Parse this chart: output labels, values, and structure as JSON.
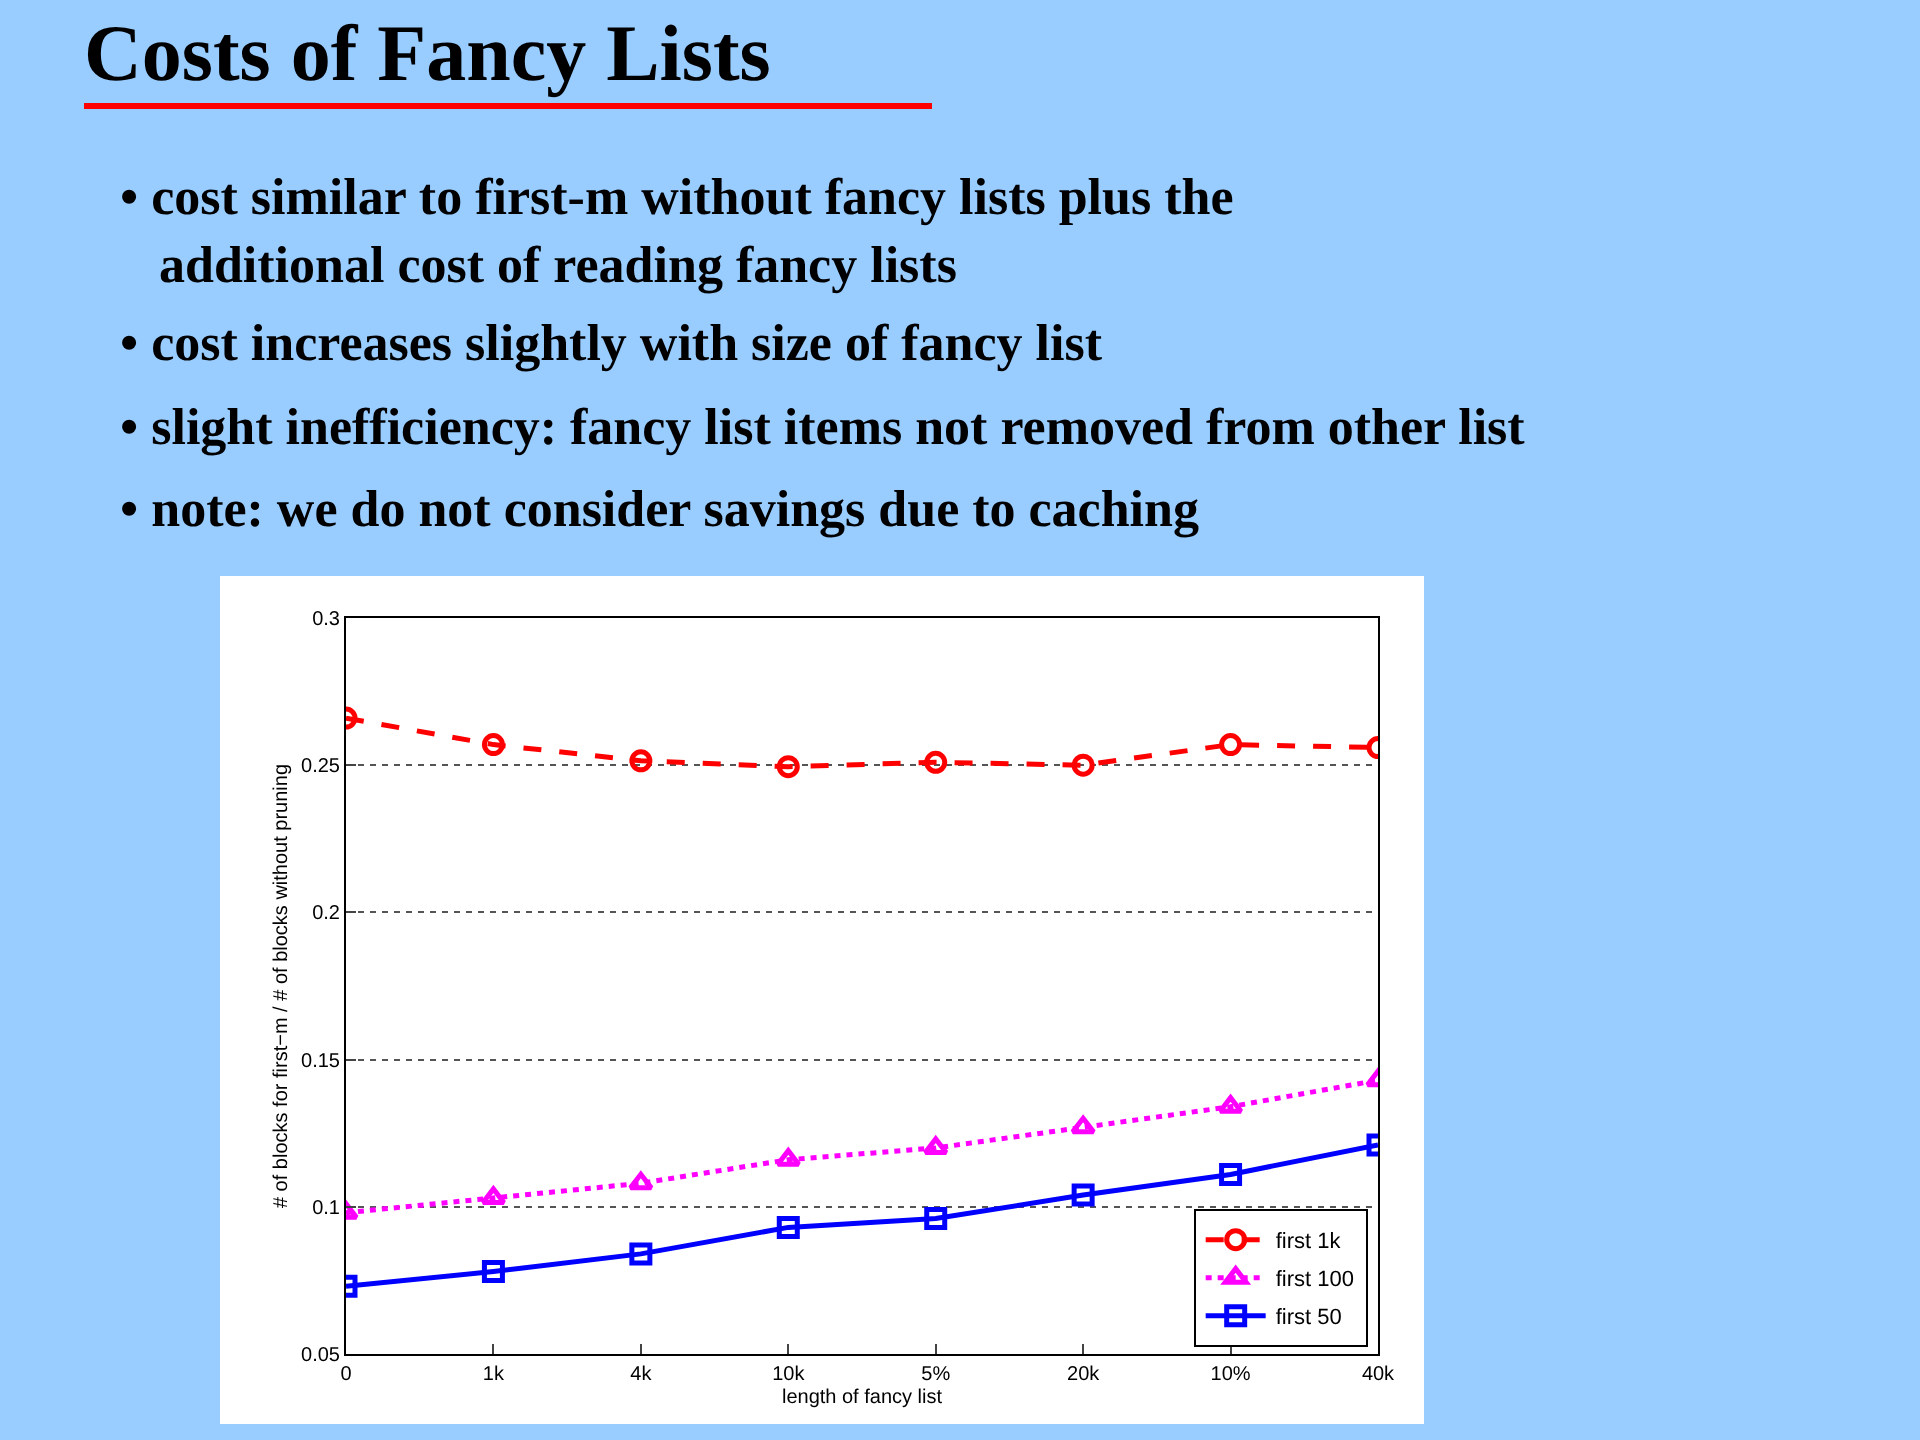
{
  "chart_data": {
    "type": "line",
    "title": "Costs of Fancy Lists",
    "annotations": [
      "• cost similar to first-m without fancy lists plus the\nadditional cost of reading fancy lists",
      "• cost increases slightly with size of fancy list",
      "• slight inefficiency: fancy list items not removed from other list",
      "• note: we do not consider savings due to caching"
    ],
    "xlabel": "length of fancy list",
    "ylabel": "# of blocks for first−m / # of blocks without pruning",
    "categories": [
      "0",
      "1k",
      "4k",
      "10k",
      "5%",
      "20k",
      "10%",
      "40k"
    ],
    "series": [
      {
        "name": "first 1k",
        "color": "#ff0000",
        "marker": "circle",
        "line_style": "dashed",
        "values": [
          0.266,
          0.257,
          0.2515,
          0.2495,
          0.251,
          0.25,
          0.257,
          0.256
        ]
      },
      {
        "name": "first 100",
        "color": "#ff00ff",
        "marker": "triangle",
        "line_style": "dotted",
        "values": [
          0.098,
          0.103,
          0.108,
          0.116,
          0.12,
          0.127,
          0.134,
          0.143
        ]
      },
      {
        "name": "first 50",
        "color": "#0000ff",
        "marker": "square",
        "line_style": "solid",
        "values": [
          0.073,
          0.078,
          0.084,
          0.093,
          0.096,
          0.104,
          0.111,
          0.121
        ]
      }
    ],
    "ylim": [
      0.05,
      0.3
    ],
    "yticks": [
      0.05,
      0.1,
      0.15,
      0.2,
      0.25,
      0.3
    ],
    "grid": "y",
    "legend": "bottom right"
  }
}
